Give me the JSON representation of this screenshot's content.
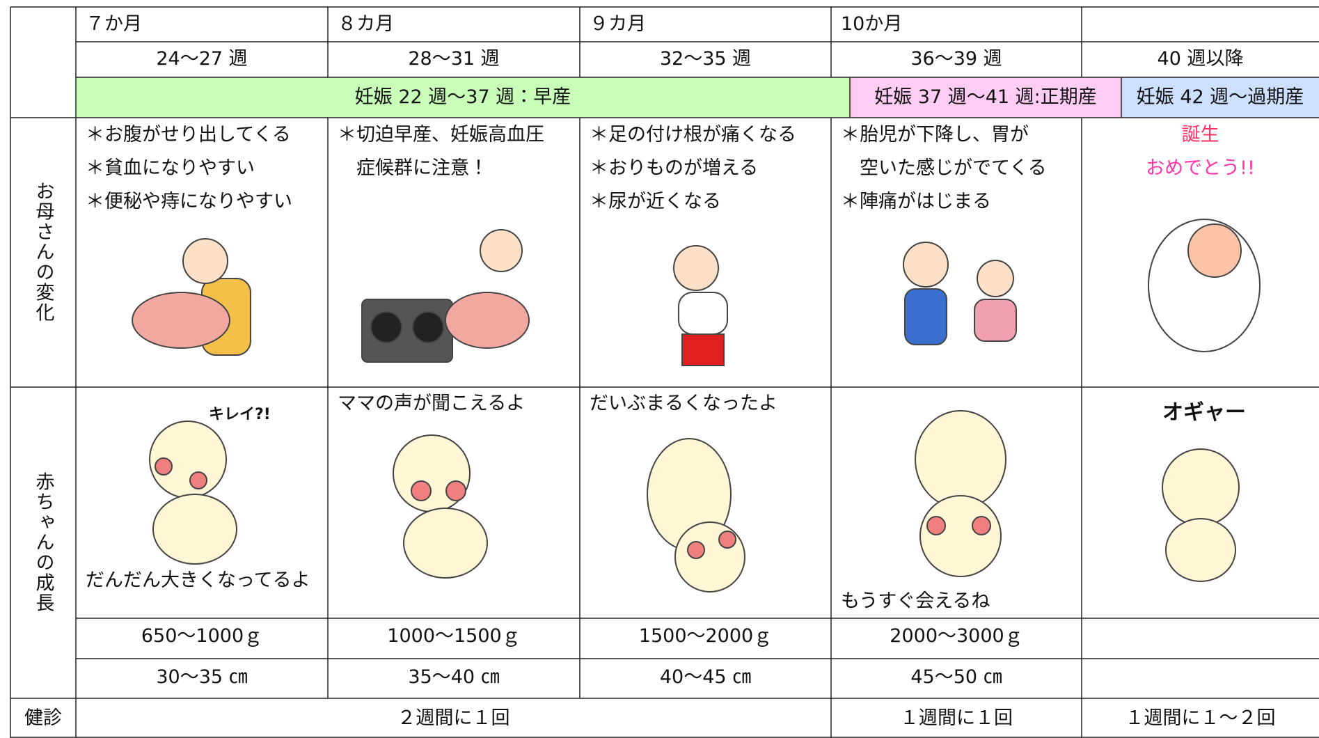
{
  "header": {
    "months": [
      "７か月",
      "８カ月",
      "９カ月",
      "10か月"
    ],
    "weeks": [
      "24〜27 週",
      "28〜31 週",
      "32〜35 週",
      "36〜39 週",
      "40 週以降"
    ],
    "periods": [
      "妊娠 22 週〜37 週：早産",
      "妊娠 37 週〜41 週:正期産",
      "妊娠 42 週〜過期産"
    ]
  },
  "mother": {
    "label": "お母さんの変化",
    "cells": [
      [
        "＊お腹がせり出してくる",
        "＊貧血になりやすい",
        "＊便秘や痔になりやすい"
      ],
      [
        "＊切迫早産、妊娠高血圧",
        "　症候群に注意！"
      ],
      [
        "＊足の付け根が痛くなる",
        "＊おりものが増える",
        "＊尿が近くなる"
      ],
      [
        "＊胎児が下降し、胃が",
        "　空いた感じがでてくる",
        "＊陣痛がはじまる"
      ]
    ],
    "birth": [
      "誕生",
      "おめでとう!!"
    ]
  },
  "baby": {
    "label": "赤ちゃんの成長",
    "captions": [
      "だんだん大きくなってるよ",
      "ママの声が聞こえるよ",
      "だいぶまるくなったよ",
      "もうすぐ会えるね"
    ],
    "exclamations": [
      "キレイ?!",
      "オギャー"
    ],
    "weights": [
      "650〜1000ｇ",
      "1000〜1500ｇ",
      "1500〜2000ｇ",
      "2000〜3000ｇ"
    ],
    "lengths": [
      "30〜35 ㎝",
      "35〜40 ㎝",
      "40〜45 ㎝",
      "45〜50 ㎝"
    ]
  },
  "checkup": {
    "label": "健診",
    "values": [
      "２週間に１回",
      "１週間に１回",
      "１週間に１〜２回"
    ]
  }
}
